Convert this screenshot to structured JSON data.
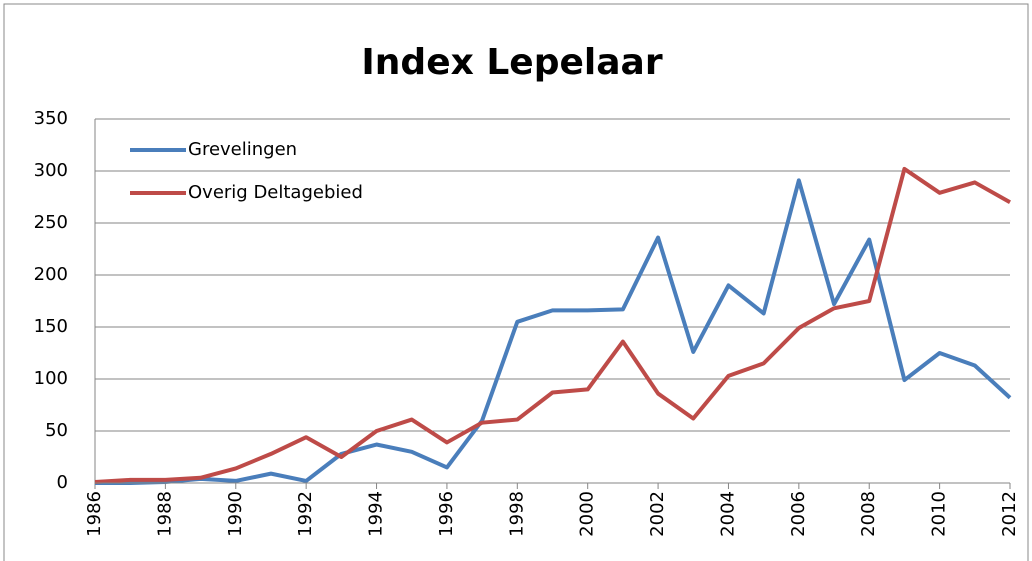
{
  "chart_data": {
    "type": "line",
    "title": "Index Lepelaar",
    "x": [
      1986,
      1987,
      1988,
      1989,
      1990,
      1991,
      1992,
      1993,
      1994,
      1995,
      1996,
      1997,
      1998,
      1999,
      2000,
      2001,
      2002,
      2003,
      2004,
      2005,
      2006,
      2007,
      2008,
      2009,
      2010,
      2011,
      2012
    ],
    "series": [
      {
        "name": "Grevelingen",
        "color": "#4a7ebb",
        "values": [
          0,
          0,
          1,
          4,
          2,
          9,
          2,
          28,
          37,
          30,
          15,
          60,
          155,
          166,
          166,
          167,
          236,
          126,
          190,
          163,
          291,
          172,
          234,
          99,
          125,
          113,
          82
        ]
      },
      {
        "name": "Overig Deltagebied",
        "color": "#be4b48",
        "values": [
          1,
          3,
          3,
          5,
          14,
          28,
          44,
          25,
          50,
          61,
          39,
          58,
          61,
          87,
          90,
          136,
          86,
          62,
          103,
          115,
          149,
          168,
          175,
          302,
          279,
          289,
          270
        ]
      }
    ],
    "xlim": [
      1986,
      2012
    ],
    "xticks": [
      1986,
      1988,
      1990,
      1992,
      1994,
      1996,
      1998,
      2000,
      2002,
      2004,
      2006,
      2008,
      2010,
      2012
    ],
    "ylim": [
      0,
      350
    ],
    "yticks": [
      0,
      50,
      100,
      150,
      200,
      250,
      300,
      350
    ],
    "grid": true,
    "legend": "upper left"
  }
}
